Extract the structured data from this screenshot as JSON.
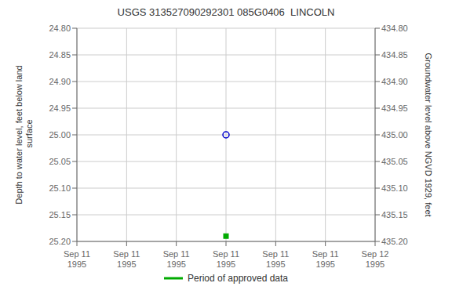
{
  "chart_data": {
    "type": "scatter",
    "title": "USGS 313527090292301 085G0406  LINCOLN",
    "ylabel": "Depth to water level, feet below land\n surface",
    "y2label": "Groundwater level above NGVD 1929, feet",
    "categories": [
      "Sep 11\n1995",
      "Sep 11\n1995",
      "Sep 11\n1995",
      "Sep 11\n1995",
      "Sep 11\n1995",
      "Sep 11\n1995",
      "Sep 12\n1995"
    ],
    "series": [
      {
        "color": "#0000cc",
        "marker": "circle",
        "values": [
          null,
          null,
          null,
          25.0,
          null,
          null,
          null
        ]
      },
      {
        "name": "Period of approved data",
        "color": "#00aa00",
        "marker": "square",
        "values": [
          null,
          null,
          null,
          25.19,
          null,
          null,
          null
        ]
      }
    ],
    "ylim": [
      25.2,
      24.8
    ],
    "yticks": [
      {
        "value": 24.8,
        "label": "24.80"
      },
      {
        "value": 24.85,
        "label": "24.85"
      },
      {
        "value": 24.9,
        "label": "24.90"
      },
      {
        "value": 24.95,
        "label": "24.95"
      },
      {
        "value": 25.0,
        "label": "25.00"
      },
      {
        "value": 25.05,
        "label": "25.05"
      },
      {
        "value": 25.1,
        "label": "25.10"
      },
      {
        "value": 25.15,
        "label": "25.15"
      },
      {
        "value": 25.2,
        "label": "25.20"
      }
    ],
    "y2lim": [
      435.2,
      434.8
    ],
    "y2ticks": [
      {
        "value": 434.8,
        "label": "434.80"
      },
      {
        "value": 434.85,
        "label": "434.85"
      },
      {
        "value": 434.9,
        "label": "434.90"
      },
      {
        "value": 434.95,
        "label": "434.95"
      },
      {
        "value": 435.0,
        "label": "435.00"
      },
      {
        "value": 435.05,
        "label": "435.05"
      },
      {
        "value": 435.1,
        "label": "435.10"
      },
      {
        "value": 435.15,
        "label": "435.15"
      },
      {
        "value": 435.2,
        "label": "435.20"
      }
    ],
    "grid": true,
    "legend": "bottom"
  }
}
